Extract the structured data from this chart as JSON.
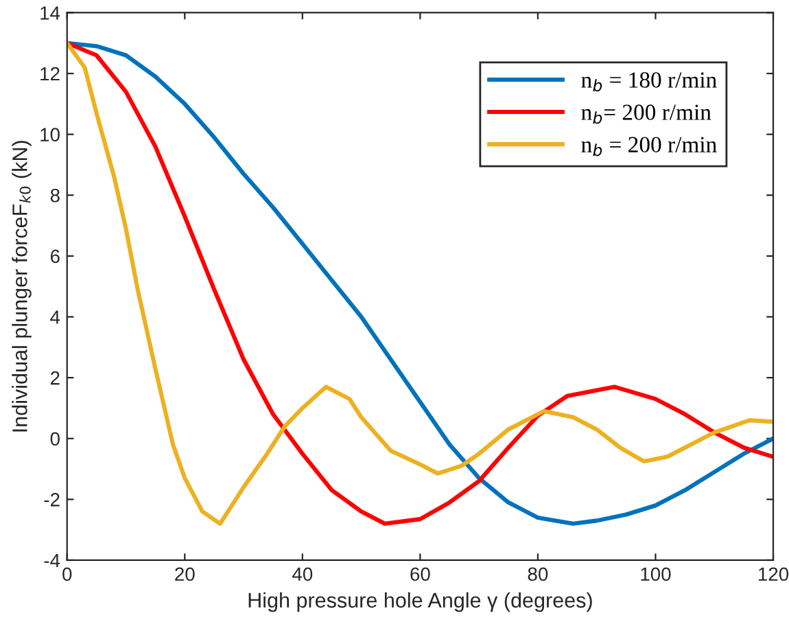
{
  "chart_data": {
    "type": "line",
    "xlabel": "High pressure hole Angle γ (degrees)",
    "ylabel": "Individual plunger forceF$_{k0}$ (kN)",
    "xlim": [
      0,
      120
    ],
    "ylim": [
      -4,
      14
    ],
    "xticks": [
      0,
      20,
      40,
      60,
      80,
      100,
      120
    ],
    "yticks": [
      -4,
      -2,
      0,
      2,
      4,
      6,
      8,
      10,
      12,
      14
    ],
    "grid": false,
    "legend": "top right",
    "marker": "none",
    "line_style": "solid",
    "series": [
      {
        "name": "n$_{b}$ = 180 r/min",
        "color": "#0072bd",
        "x": [
          0,
          5,
          10,
          15,
          20,
          25,
          30,
          35,
          40,
          45,
          50,
          55,
          60,
          65,
          70,
          75,
          80,
          86,
          90,
          95,
          100,
          105,
          110,
          115,
          120
        ],
        "values": [
          13,
          12.9,
          12.6,
          11.9,
          11.0,
          9.9,
          8.7,
          7.6,
          6.4,
          5.2,
          4.0,
          2.6,
          1.2,
          -0.2,
          -1.3,
          -2.1,
          -2.6,
          -2.8,
          -2.7,
          -2.5,
          -2.2,
          -1.7,
          -1.1,
          -0.5,
          0
        ]
      },
      {
        "name": "n$_{b}$= 200 r/min",
        "color": "#ff0000",
        "x": [
          0,
          5,
          10,
          15,
          20,
          25,
          30,
          35,
          40,
          45,
          50,
          54,
          60,
          65,
          70,
          75,
          80,
          85,
          93,
          100,
          105,
          110,
          115,
          120
        ],
        "values": [
          13,
          12.6,
          11.4,
          9.6,
          7.3,
          4.9,
          2.6,
          0.8,
          -0.5,
          -1.7,
          -2.4,
          -2.8,
          -2.65,
          -2.1,
          -1.4,
          -0.3,
          0.75,
          1.4,
          1.7,
          1.3,
          0.8,
          0.2,
          -0.3,
          -0.6
        ]
      },
      {
        "name": "n$_{b}$ = 200 r/min",
        "color": "#edb120",
        "x": [
          0,
          3,
          5,
          8,
          10,
          12,
          15,
          18,
          20,
          23,
          26,
          30,
          34,
          37,
          40,
          44,
          48,
          50,
          55,
          60,
          63,
          67,
          70,
          75,
          81,
          86,
          90,
          94,
          98,
          102,
          105,
          110,
          116,
          120
        ],
        "values": [
          13,
          12.2,
          10.7,
          8.6,
          6.9,
          4.9,
          2.3,
          -0.2,
          -1.3,
          -2.4,
          -2.8,
          -1.6,
          -0.5,
          0.4,
          1.0,
          1.7,
          1.3,
          0.7,
          -0.4,
          -0.85,
          -1.15,
          -0.9,
          -0.5,
          0.3,
          0.9,
          0.7,
          0.3,
          -0.3,
          -0.75,
          -0.6,
          -0.3,
          0.2,
          0.6,
          0.55
        ]
      }
    ]
  }
}
